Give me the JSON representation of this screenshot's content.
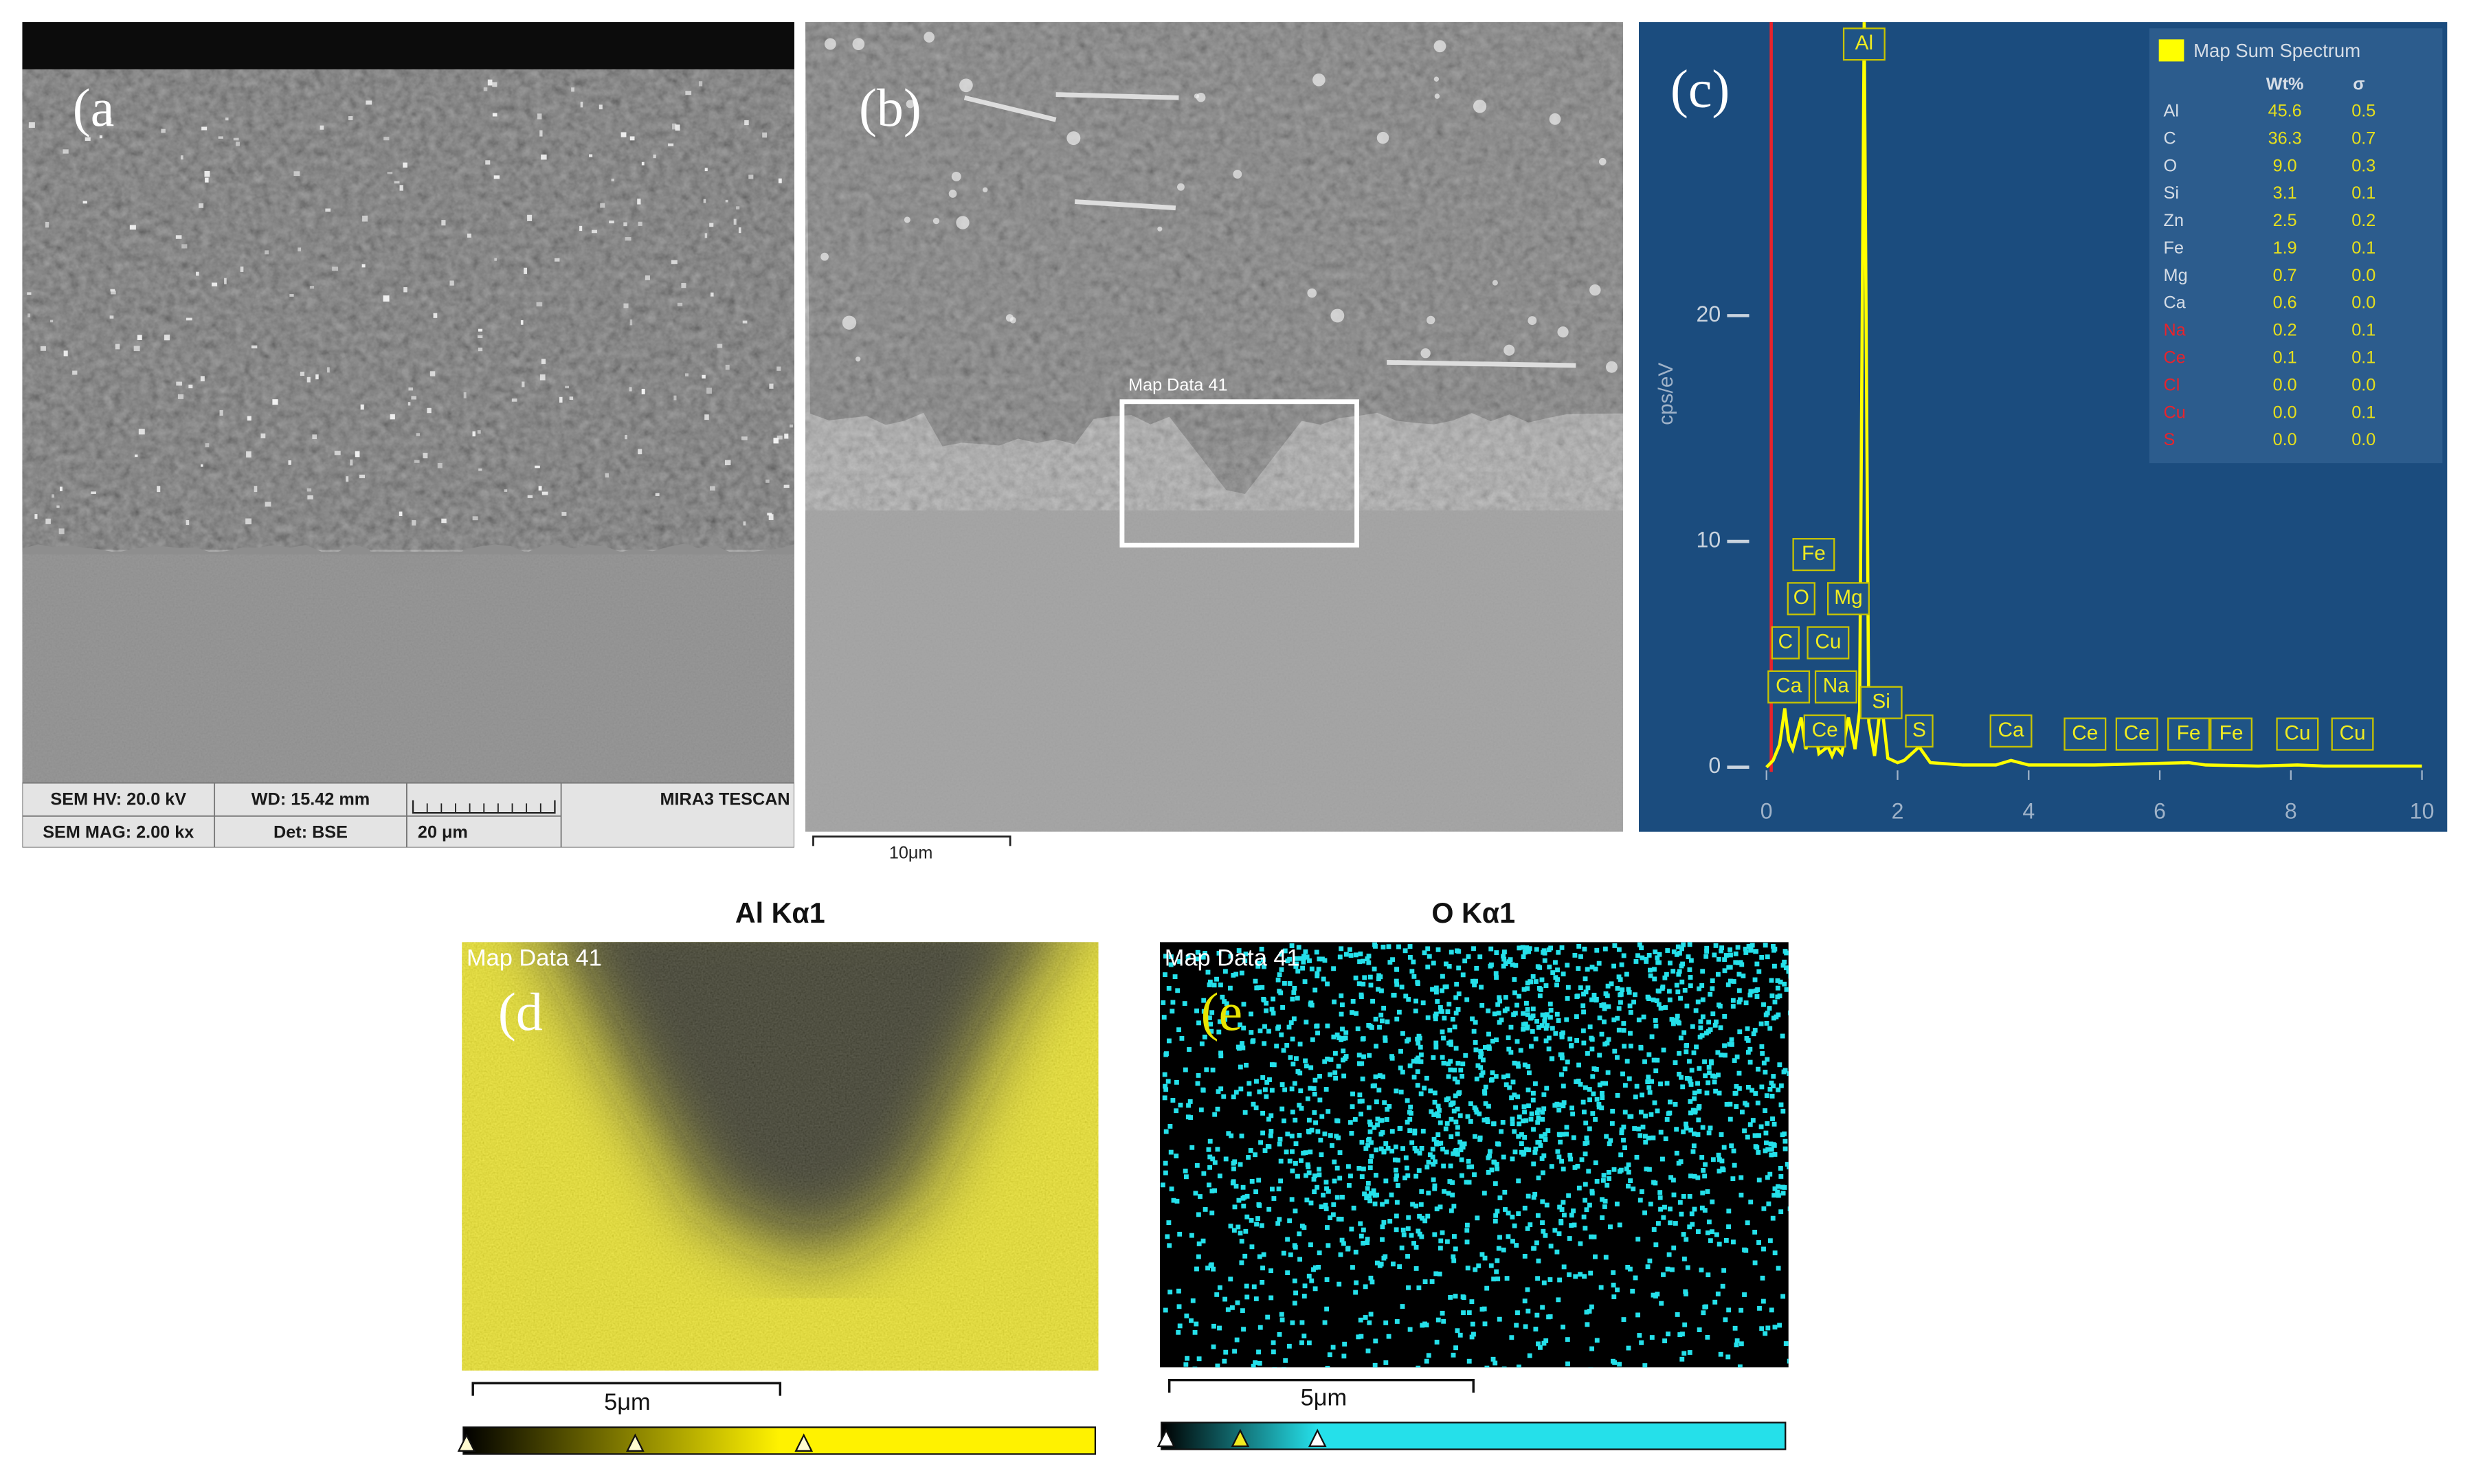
{
  "panels": {
    "a": {
      "label": "(a",
      "info_bar": {
        "hv": "SEM HV: 20.0 kV",
        "wd": "WD: 15.42 mm",
        "brand": "MIRA3 TESCAN",
        "mag": "SEM MAG: 2.00 kx",
        "det": "Det: BSE",
        "scale": "20 μm"
      }
    },
    "b": {
      "label": "(b)",
      "roi": "Map Data 41",
      "scale": "10μm"
    },
    "c": {
      "label": "(c)"
    },
    "d": {
      "title": "Al Kα1",
      "map": "Map Data 41",
      "label": "(d",
      "scale": "5μm"
    },
    "e": {
      "title": "O Kα1",
      "map": "Map Data 41",
      "label": "(e",
      "scale": "5μm"
    }
  },
  "chart_data": {
    "type": "line",
    "y_label": "cps/eV",
    "xlim": [
      0,
      10
    ],
    "xticks": [
      0,
      2,
      4,
      6,
      8,
      10
    ],
    "ylim": [
      0,
      33
    ],
    "yticks": [
      0,
      10,
      20
    ],
    "x": [
      0,
      0.1,
      0.2,
      0.28,
      0.34,
      0.4,
      0.53,
      0.6,
      0.72,
      0.8,
      0.89,
      0.94,
      1.0,
      1.06,
      1.15,
      1.25,
      1.35,
      1.42,
      1.49,
      1.56,
      1.65,
      1.75,
      1.85,
      2.0,
      2.1,
      2.33,
      2.5,
      3.0,
      3.5,
      3.73,
      4.0,
      5.0,
      6.44,
      6.7,
      7.5,
      8.1,
      8.5,
      9.5,
      10
    ],
    "series": [
      {
        "name": "Map Sum Spectrum",
        "color": "#ffff00",
        "values": [
          0,
          0.3,
          1.0,
          2.6,
          1.2,
          0.8,
          2.2,
          0.8,
          2.0,
          0.6,
          0.8,
          0.9,
          0.5,
          0.9,
          0.6,
          2.2,
          0.8,
          2.5,
          33,
          2.0,
          0.5,
          3.0,
          0.4,
          0.2,
          0.3,
          0.9,
          0.2,
          0.1,
          0.1,
          0.3,
          0.1,
          0.1,
          0.2,
          0.1,
          0.05,
          0.1,
          0.05,
          0.05,
          0.05
        ]
      }
    ],
    "peaks": [
      {
        "label": "Al",
        "x": 1.49
      },
      {
        "label": "Fe",
        "x": 0.72
      },
      {
        "label": "O",
        "x": 0.53
      },
      {
        "label": "Mg",
        "x": 1.25
      },
      {
        "label": "C",
        "x": 0.29
      },
      {
        "label": "Cu",
        "x": 0.94
      },
      {
        "label": "Ca",
        "x": 0.34
      },
      {
        "label": "Na",
        "x": 1.06
      },
      {
        "label": "Ce",
        "x": 0.89
      },
      {
        "label": "Si",
        "x": 1.75
      },
      {
        "label": "S",
        "x": 2.33
      },
      {
        "label": "Ca",
        "x": 3.73
      },
      {
        "label": "Ce",
        "x": 4.86
      },
      {
        "label": "Ce",
        "x": 5.65
      },
      {
        "label": "Fe",
        "x": 6.44
      },
      {
        "label": "Fe",
        "x": 7.09
      },
      {
        "label": "Cu",
        "x": 8.1
      },
      {
        "label": "Cu",
        "x": 8.94
      }
    ],
    "legend": {
      "title": "Map Sum Spectrum",
      "headers": [
        "Wt%",
        "σ"
      ],
      "rows": [
        {
          "element": "Al",
          "wt": "45.6",
          "sigma": "0.5",
          "color": "#d6dde6"
        },
        {
          "element": "C",
          "wt": "36.3",
          "sigma": "0.7",
          "color": "#d6dde6"
        },
        {
          "element": "O",
          "wt": "9.0",
          "sigma": "0.3",
          "color": "#d6dde6"
        },
        {
          "element": "Si",
          "wt": "3.1",
          "sigma": "0.1",
          "color": "#d6dde6"
        },
        {
          "element": "Zn",
          "wt": "2.5",
          "sigma": "0.2",
          "color": "#d6dde6"
        },
        {
          "element": "Fe",
          "wt": "1.9",
          "sigma": "0.1",
          "color": "#d6dde6"
        },
        {
          "element": "Mg",
          "wt": "0.7",
          "sigma": "0.0",
          "color": "#d6dde6"
        },
        {
          "element": "Ca",
          "wt": "0.6",
          "sigma": "0.0",
          "color": "#d6dde6"
        },
        {
          "element": "Na",
          "wt": "0.2",
          "sigma": "0.1",
          "color": "#e8232c"
        },
        {
          "element": "Ce",
          "wt": "0.1",
          "sigma": "0.1",
          "color": "#e8232c"
        },
        {
          "element": "Cl",
          "wt": "0.0",
          "sigma": "0.0",
          "color": "#e8232c"
        },
        {
          "element": "Cu",
          "wt": "0.0",
          "sigma": "0.1",
          "color": "#e8232c"
        },
        {
          "element": "S",
          "wt": "0.0",
          "sigma": "0.0",
          "color": "#e8232c"
        }
      ]
    }
  }
}
